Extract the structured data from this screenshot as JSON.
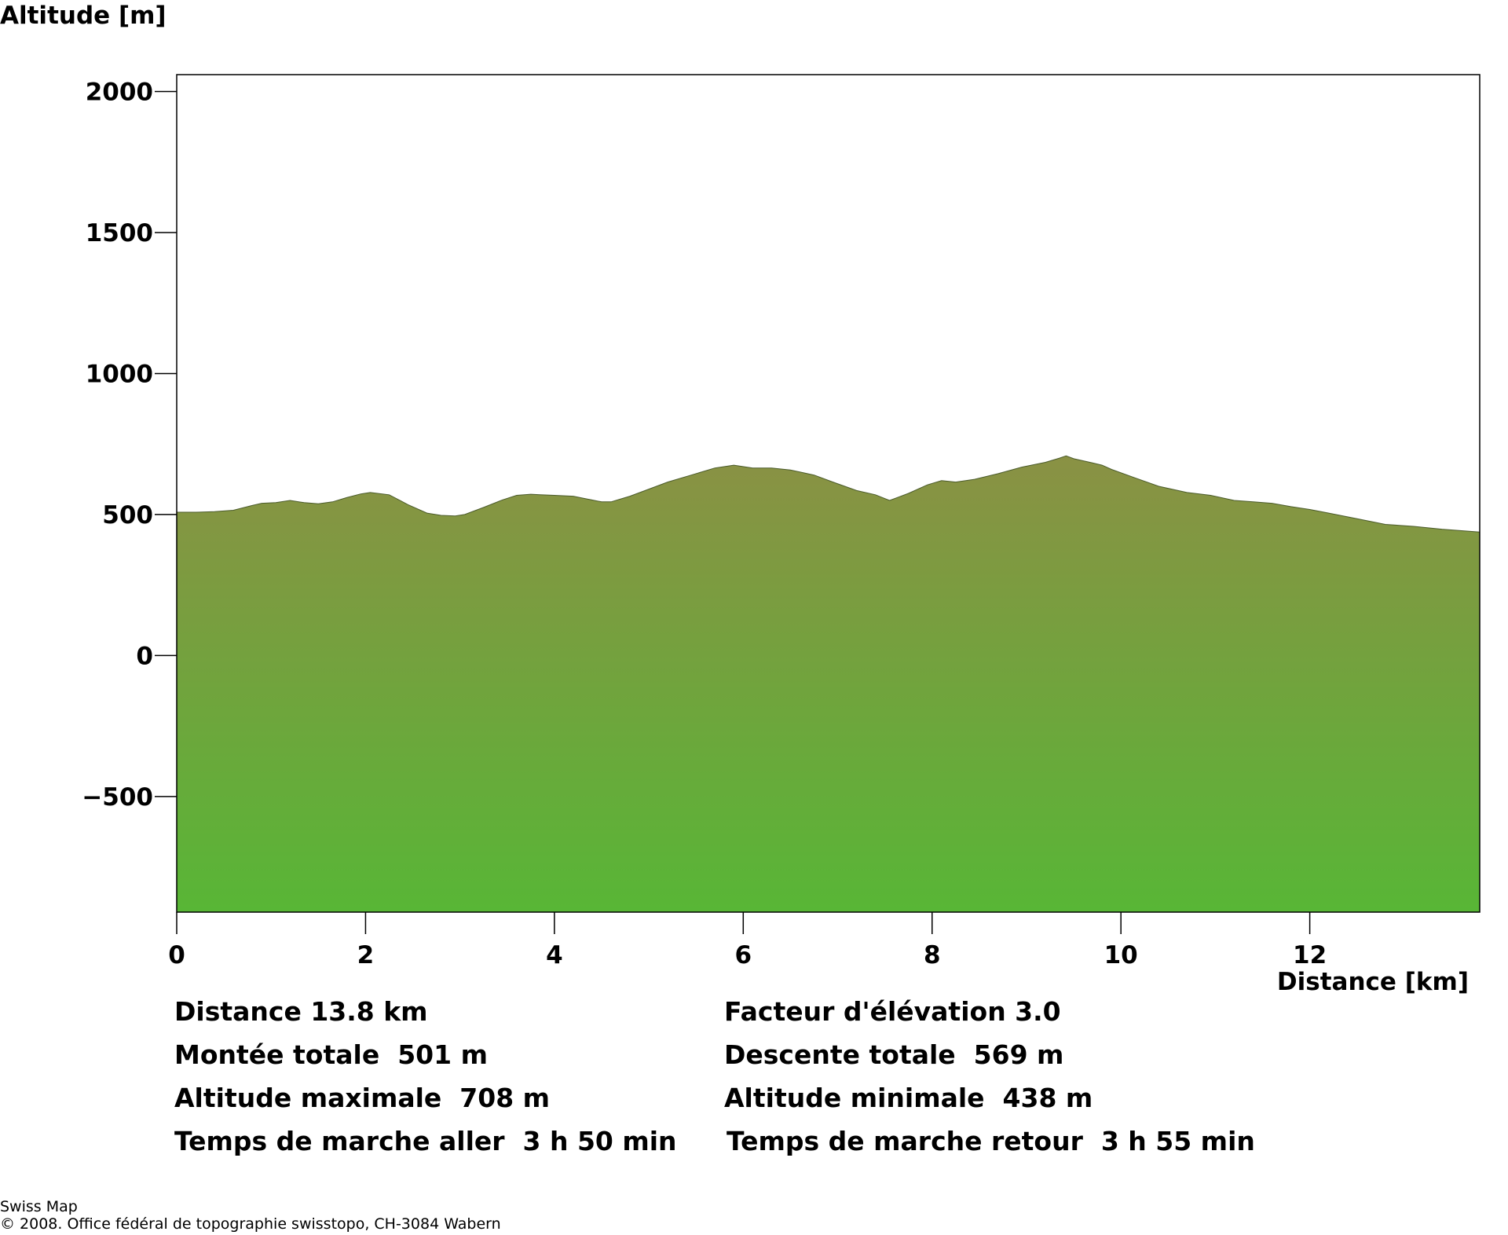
{
  "chart_data": {
    "type": "area",
    "ylabel": "Altitude [m]",
    "xlabel": "Distance [km]",
    "xlim": [
      0,
      13.8
    ],
    "ylim": [
      -910,
      2060
    ],
    "xticks": [
      0,
      2,
      4,
      6,
      8,
      10,
      12
    ],
    "yticks": [
      2000,
      1500,
      1000,
      500,
      0,
      -500
    ],
    "ytick_labels": [
      "2000",
      "1500",
      "1000",
      "500",
      "0",
      "−500"
    ],
    "grid": false,
    "fill_color_top": "#8a9144",
    "fill_color_bottom": "#58b636",
    "x": [
      0,
      0.2,
      0.4,
      0.6,
      0.8,
      0.9,
      1.05,
      1.2,
      1.35,
      1.5,
      1.65,
      1.8,
      1.95,
      2.05,
      2.25,
      2.45,
      2.65,
      2.8,
      2.95,
      3.05,
      3.25,
      3.45,
      3.6,
      3.75,
      3.85,
      4.0,
      4.2,
      4.35,
      4.5,
      4.6,
      4.8,
      5.0,
      5.2,
      5.45,
      5.7,
      5.9,
      6.1,
      6.3,
      6.5,
      6.75,
      6.95,
      7.2,
      7.4,
      7.55,
      7.75,
      7.95,
      8.1,
      8.25,
      8.45,
      8.7,
      8.95,
      9.2,
      9.35,
      9.42,
      9.5,
      9.7,
      9.8,
      9.9,
      10.15,
      10.4,
      10.7,
      10.95,
      11.2,
      11.4,
      11.6,
      11.8,
      12.0,
      12.2,
      12.5,
      12.8,
      13.1,
      13.4,
      13.8
    ],
    "y": [
      508,
      508,
      510,
      515,
      532,
      540,
      542,
      550,
      542,
      538,
      545,
      560,
      573,
      578,
      570,
      535,
      505,
      497,
      495,
      500,
      525,
      552,
      568,
      572,
      570,
      568,
      565,
      555,
      545,
      545,
      565,
      590,
      615,
      640,
      665,
      675,
      665,
      665,
      658,
      640,
      615,
      585,
      570,
      550,
      575,
      605,
      620,
      615,
      625,
      645,
      668,
      685,
      700,
      708,
      698,
      683,
      675,
      660,
      630,
      600,
      578,
      568,
      550,
      545,
      540,
      528,
      518,
      505,
      485,
      465,
      458,
      448,
      438
    ]
  },
  "stats": {
    "left": [
      "Distance 13.8 km",
      "Montée totale  501 m",
      "Altitude maximale  708 m",
      "Temps de marche aller  3 h 50 min"
    ],
    "right": [
      "Facteur d'élévation 3.0",
      "Descente totale  569 m",
      "Altitude minimale  438 m",
      "Temps de marche retour  3 h 55 min"
    ]
  },
  "footer": {
    "line1": "Swiss Map",
    "line2": "© 2008. Office fédéral de topographie swisstopo, CH-3084 Wabern"
  }
}
